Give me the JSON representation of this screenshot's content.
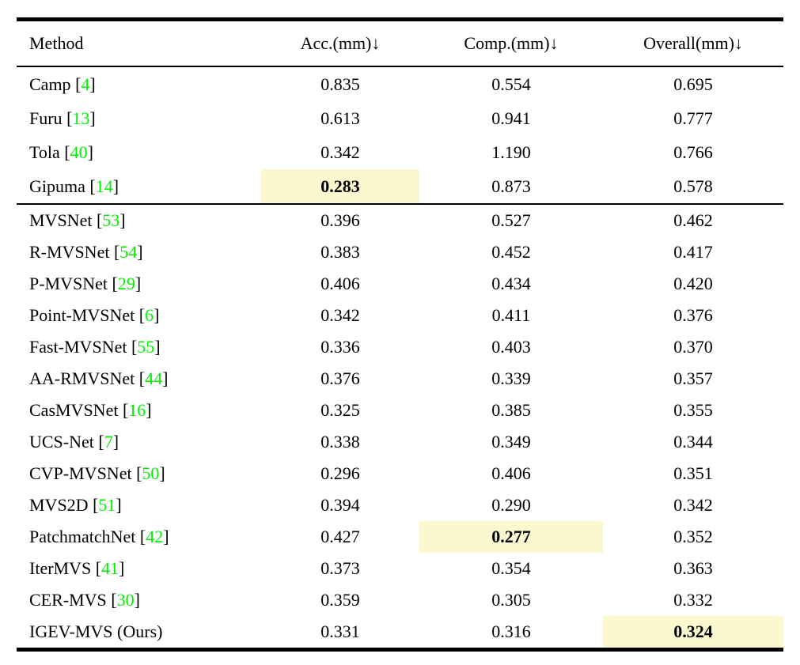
{
  "page": {
    "background": "#ffffff"
  },
  "colors": {
    "citation_green": "#00f000",
    "highlight_yellow": "#fbf7cf",
    "rule_black": "#000000"
  },
  "table": {
    "columns": [
      {
        "key": "method",
        "label": "Method"
      },
      {
        "key": "acc",
        "label": "Acc.(mm)↓"
      },
      {
        "key": "comp",
        "label": "Comp.(mm)↓"
      },
      {
        "key": "overall",
        "label": "Overall(mm)↓"
      }
    ],
    "groups": [
      {
        "name": "traditional-methods",
        "rows": [
          {
            "method": "Camp",
            "ref": "4",
            "acc": "0.835",
            "comp": "0.554",
            "overall": "0.695",
            "best": null
          },
          {
            "method": "Furu",
            "ref": "13",
            "acc": "0.613",
            "comp": "0.941",
            "overall": "0.777",
            "best": null
          },
          {
            "method": "Tola",
            "ref": "40",
            "acc": "0.342",
            "comp": "1.190",
            "overall": "0.766",
            "best": null
          },
          {
            "method": "Gipuma",
            "ref": "14",
            "acc": "0.283",
            "comp": "0.873",
            "overall": "0.578",
            "best": "acc"
          }
        ]
      },
      {
        "name": "learning-based-methods",
        "rows": [
          {
            "method": "MVSNet",
            "ref": "53",
            "acc": "0.396",
            "comp": "0.527",
            "overall": "0.462",
            "best": null
          },
          {
            "method": "R-MVSNet",
            "ref": "54",
            "acc": "0.383",
            "comp": "0.452",
            "overall": "0.417",
            "best": null
          },
          {
            "method": "P-MVSNet",
            "ref": "29",
            "acc": "0.406",
            "comp": "0.434",
            "overall": "0.420",
            "best": null
          },
          {
            "method": "Point-MVSNet",
            "ref": "6",
            "acc": "0.342",
            "comp": "0.411",
            "overall": "0.376",
            "best": null
          },
          {
            "method": "Fast-MVSNet",
            "ref": "55",
            "acc": "0.336",
            "comp": "0.403",
            "overall": "0.370",
            "best": null
          },
          {
            "method": "AA-RMVSNet",
            "ref": "44",
            "acc": "0.376",
            "comp": "0.339",
            "overall": "0.357",
            "best": null
          },
          {
            "method": "CasMVSNet",
            "ref": "16",
            "acc": "0.325",
            "comp": "0.385",
            "overall": "0.355",
            "best": null
          },
          {
            "method": "UCS-Net",
            "ref": "7",
            "acc": "0.338",
            "comp": "0.349",
            "overall": "0.344",
            "best": null
          },
          {
            "method": "CVP-MVSNet",
            "ref": "50",
            "acc": "0.296",
            "comp": "0.406",
            "overall": "0.351",
            "best": null
          },
          {
            "method": "MVS2D",
            "ref": "51",
            "acc": "0.394",
            "comp": "0.290",
            "overall": "0.342",
            "best": null
          },
          {
            "method": "PatchmatchNet",
            "ref": "42",
            "acc": "0.427",
            "comp": "0.277",
            "overall": "0.352",
            "best": "comp"
          },
          {
            "method": "IterMVS",
            "ref": "41",
            "acc": "0.373",
            "comp": "0.354",
            "overall": "0.363",
            "best": null
          },
          {
            "method": "CER-MVS",
            "ref": "30",
            "acc": "0.359",
            "comp": "0.305",
            "overall": "0.332",
            "best": null
          },
          {
            "method": "IGEV-MVS (Ours)",
            "ref": null,
            "acc": "0.331",
            "comp": "0.316",
            "overall": "0.324",
            "best": "overall"
          }
        ]
      }
    ]
  }
}
